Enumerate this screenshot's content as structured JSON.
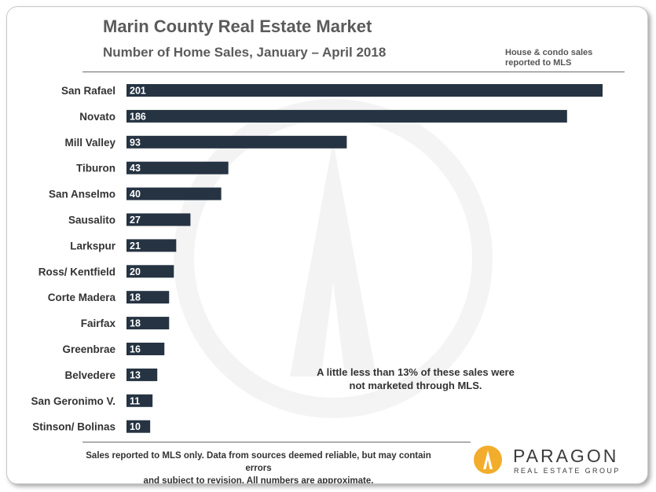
{
  "header": {
    "title": "Marin County Real Estate Market",
    "subtitle": "Number of Home Sales, January – April 2018",
    "note": "House & condo sales reported to MLS"
  },
  "annotation": {
    "line1": "A little less than 13% of these sales were",
    "line2": "not marketed through MLS."
  },
  "footnote": {
    "line1": "Sales reported to MLS only. Data from sources deemed reliable, but may contain errors",
    "line2": "and subject to revision. All numbers are approximate."
  },
  "brand": {
    "name": "PARAGON",
    "tagline": "REAL ESTATE GROUP",
    "accent": "#f2ad2c"
  },
  "colors": {
    "bar": "#253342",
    "label": "#333333"
  },
  "chart_data": {
    "type": "bar",
    "orientation": "horizontal",
    "categories": [
      "San Rafael",
      "Novato",
      "Mill Valley",
      "Tiburon",
      "San Anselmo",
      "Sausalito",
      "Larkspur",
      "Ross/ Kentfield",
      "Corte Madera",
      "Fairfax",
      "Greenbrae",
      "Belvedere",
      "San Geronimo V.",
      "Stinson/ Bolinas"
    ],
    "values": [
      201,
      186,
      93,
      43,
      40,
      27,
      21,
      20,
      18,
      18,
      16,
      13,
      11,
      10
    ],
    "xlim": [
      0,
      201
    ],
    "grid": false,
    "legend": "none"
  }
}
